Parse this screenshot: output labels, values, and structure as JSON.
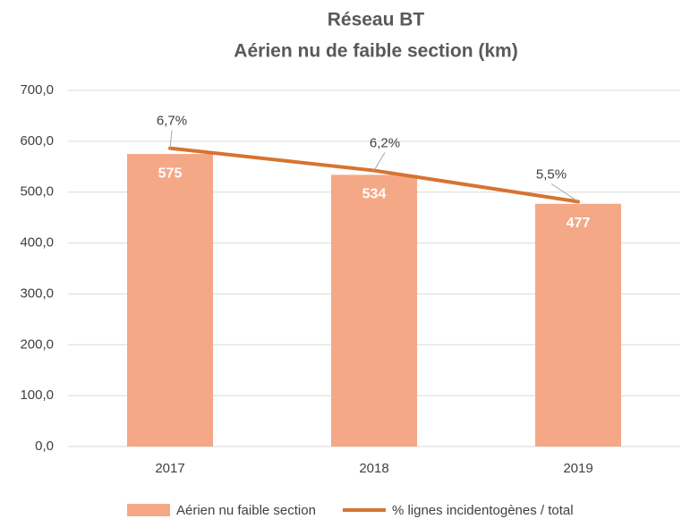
{
  "chart_data": {
    "type": "bar",
    "title": "Réseau BT",
    "subtitle": "Aérien nu de faible section (km)",
    "categories": [
      "2017",
      "2018",
      "2019"
    ],
    "series": [
      {
        "name": "Aérien nu faible section",
        "type": "bar",
        "color": "#f4a886",
        "values": [
          575,
          534,
          477
        ]
      },
      {
        "name": "% lignes incidentogènes / total",
        "type": "line",
        "axis": "y2",
        "color": "#d6742f",
        "values": [
          6.7,
          6.2,
          5.5
        ],
        "value_labels": [
          "6,7%",
          "6,2%",
          "5,5%"
        ]
      }
    ],
    "ylim": [
      0,
      700
    ],
    "yticks": [
      {
        "value": 0,
        "label": "0,0"
      },
      {
        "value": 100,
        "label": "100,0"
      },
      {
        "value": 200,
        "label": "200,0"
      },
      {
        "value": 300,
        "label": "300,0"
      },
      {
        "value": 400,
        "label": "400,0"
      },
      {
        "value": 500,
        "label": "500,0"
      },
      {
        "value": 600,
        "label": "600,0"
      },
      {
        "value": 700,
        "label": "700,0"
      }
    ],
    "y2lim": [
      0,
      8
    ],
    "grid": true,
    "legend": "bottom"
  }
}
